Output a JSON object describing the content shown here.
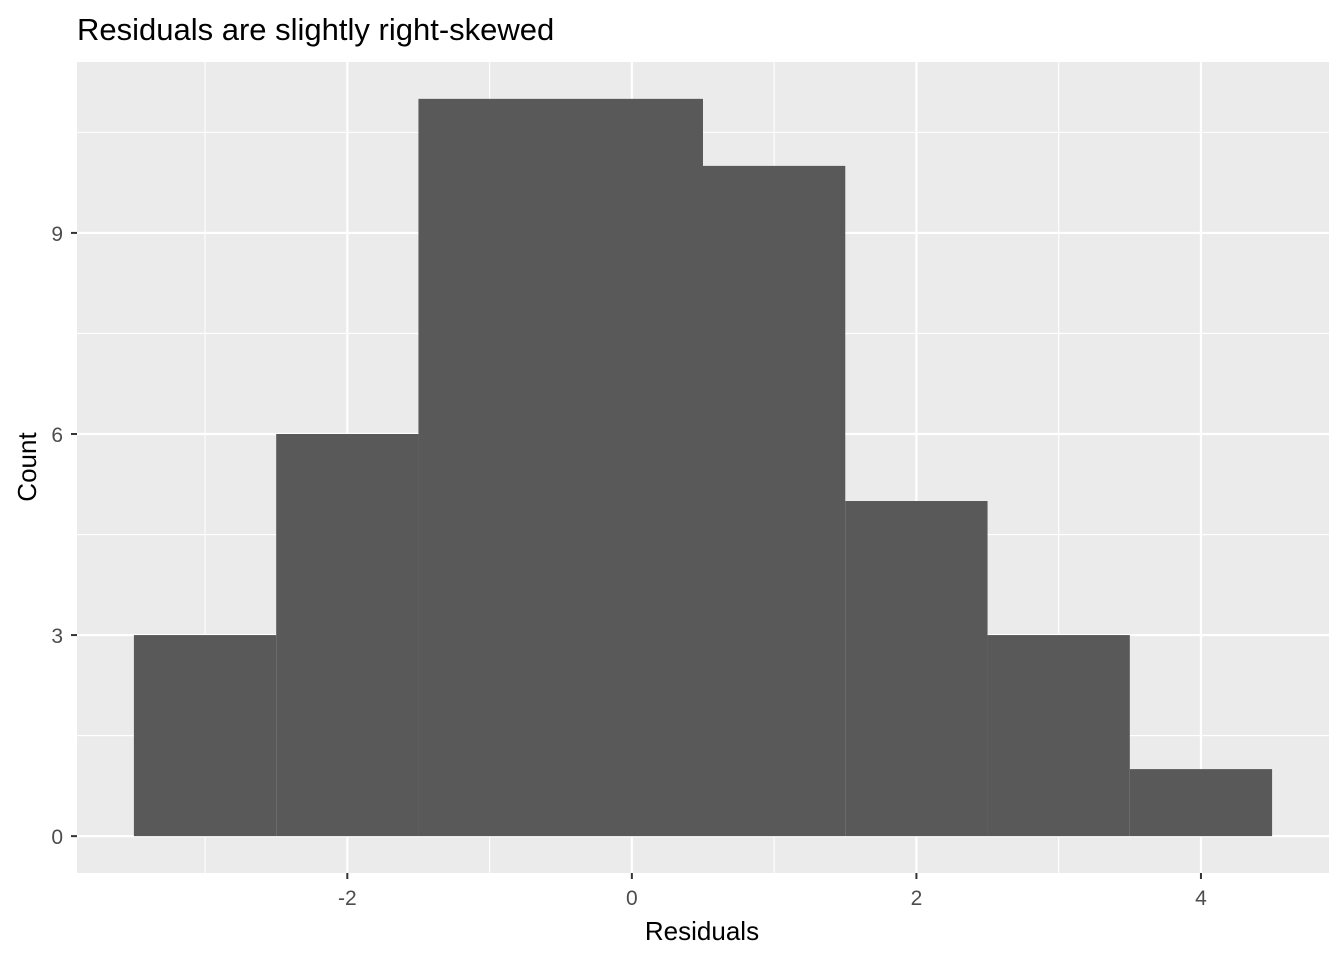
{
  "chart_data": {
    "type": "bar",
    "title": "Residuals are slightly right-skewed",
    "xlabel": "Residuals",
    "ylabel": "Count",
    "bins": [
      {
        "x_start": -3.5,
        "x_end": -2.5,
        "count": 3
      },
      {
        "x_start": -2.5,
        "x_end": -1.5,
        "count": 6
      },
      {
        "x_start": -1.5,
        "x_end": 0.5,
        "count": 11
      },
      {
        "x_start": 0.5,
        "x_end": 1.5,
        "count": 10
      },
      {
        "x_start": 1.5,
        "x_end": 2.5,
        "count": 5
      },
      {
        "x_start": 2.5,
        "x_end": 3.5,
        "count": 3
      },
      {
        "x_start": 3.5,
        "x_end": 4.5,
        "count": 1
      }
    ],
    "x_ticks": [
      -2,
      0,
      2,
      4
    ],
    "x_tick_labels": [
      "-2",
      "0",
      "2",
      "4"
    ],
    "y_ticks": [
      0,
      3,
      6,
      9
    ],
    "y_tick_labels": [
      "0",
      "3",
      "6",
      "9"
    ],
    "xlim": [
      -3.9,
      4.9
    ],
    "ylim": [
      -0.55,
      11.55
    ],
    "grid": true,
    "colors": {
      "bar_fill": "#595959",
      "panel_background": "#ebebeb",
      "grid_line": "#ffffff",
      "tick_text": "#4d4d4d"
    }
  }
}
